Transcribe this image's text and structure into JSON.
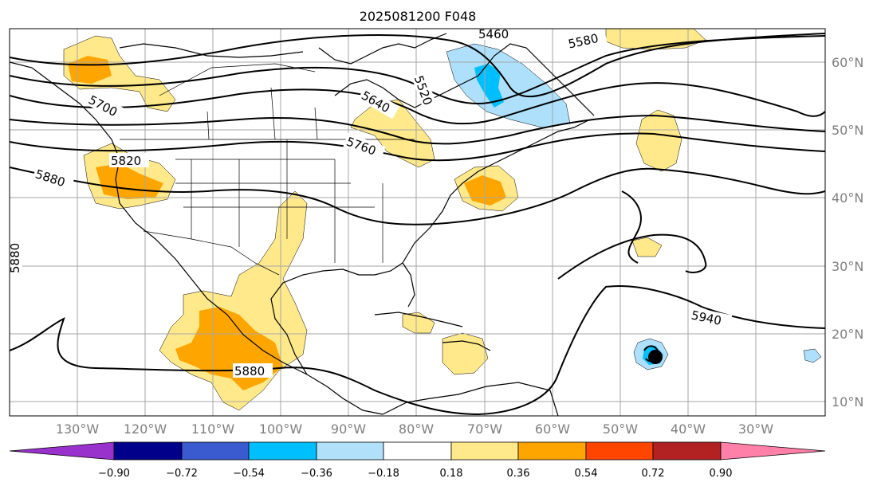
{
  "title": "2025081200 F048",
  "map": {
    "lon_labels": [
      "130°W",
      "120°W",
      "110°W",
      "100°W",
      "90°W",
      "80°W",
      "70°W",
      "60°W",
      "50°W",
      "40°W",
      "30°W"
    ],
    "lat_labels": [
      "60°N",
      "50°N",
      "40°N",
      "30°N",
      "20°N",
      "10°N"
    ],
    "contour_labels": [
      "5460",
      "5580",
      "5520",
      "5640",
      "5700",
      "5760",
      "5820",
      "5880",
      "5880",
      "5880",
      "5940"
    ],
    "colors": {
      "light_yellow": "#ffe98a",
      "orange": "#ffa500",
      "light_blue": "#aee0fb",
      "blue": "#00bfff"
    },
    "storm_icon": "hurricane-dot-icon"
  },
  "colorbar": {
    "labels": [
      "−0.90",
      "−0.72",
      "−0.54",
      "−0.36",
      "−0.18",
      "0.18",
      "0.36",
      "0.54",
      "0.72",
      "0.90"
    ],
    "colors": [
      "#9932cc",
      "#00008b",
      "#3a5bd0",
      "#00bfff",
      "#b0e0fa",
      "#ffffff",
      "#ffe98a",
      "#ffa500",
      "#ff4500",
      "#b22222",
      "#ff80a8"
    ]
  }
}
